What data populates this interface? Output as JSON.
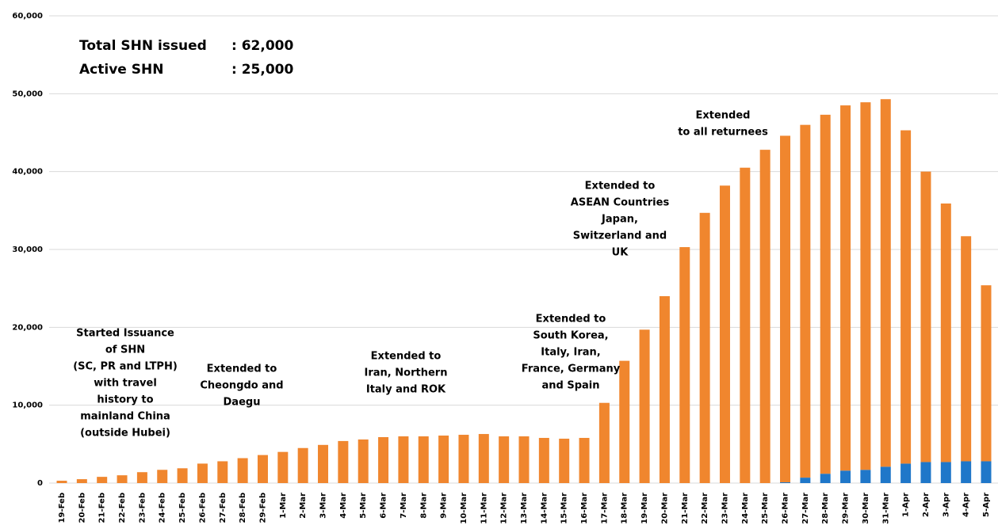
{
  "chart_data": {
    "type": "stacked_bar",
    "summary": [
      {
        "label": "Total SHN issued",
        "value": ": 62,000"
      },
      {
        "label": "Active SHN",
        "value": ": 25,000"
      }
    ],
    "annotations": [
      {
        "lines": [
          "Started Issuance",
          "of SHN",
          "(SC, PR and LTPH)",
          "with travel",
          "history to",
          "mainland China",
          "(outside Hubei)"
        ]
      },
      {
        "lines": [
          "Extended to",
          "Cheongdo and",
          "Daegu"
        ]
      },
      {
        "lines": [
          "Extended to",
          "Iran, Northern",
          "Italy and ROK"
        ]
      },
      {
        "lines": [
          "Extended to",
          "South Korea,",
          "Italy, Iran,",
          "France, Germany",
          "and Spain"
        ]
      },
      {
        "lines": [
          "Extended to",
          "ASEAN Countries",
          "Japan,",
          "Switzerland and",
          "UK"
        ]
      },
      {
        "lines": [
          "Extended",
          "to all returnees"
        ]
      }
    ],
    "categories": [
      "19-Feb",
      "20-Feb",
      "21-Feb",
      "22-Feb",
      "23-Feb",
      "24-Feb",
      "25-Feb",
      "26-Feb",
      "27-Feb",
      "28-Feb",
      "29-Feb",
      "1-Mar",
      "2-Mar",
      "3-Mar",
      "4-Mar",
      "5-Mar",
      "6-Mar",
      "7-Mar",
      "8-Mar",
      "9-Mar",
      "10-Mar",
      "11-Mar",
      "12-Mar",
      "13-Mar",
      "14-Mar",
      "15-Mar",
      "16-Mar",
      "17-Mar",
      "18-Mar",
      "19-Mar",
      "20-Mar",
      "21-Mar",
      "22-Mar",
      "23-Mar",
      "24-Mar",
      "25-Mar",
      "26-Mar",
      "27-Mar",
      "28-Mar",
      "29-Mar",
      "30-Mar",
      "31-Mar",
      "1-Apr",
      "2-Apr",
      "3-Apr",
      "4-Apr",
      "5-Apr"
    ],
    "series": [
      {
        "color": "#1f77c9",
        "values": [
          0,
          0,
          0,
          0,
          0,
          0,
          0,
          0,
          0,
          0,
          0,
          0,
          0,
          0,
          0,
          0,
          0,
          0,
          0,
          0,
          0,
          0,
          0,
          0,
          0,
          0,
          0,
          0,
          0,
          0,
          0,
          0,
          0,
          0,
          0,
          0,
          100,
          700,
          1200,
          1600,
          1700,
          2100,
          2500,
          2700,
          2700,
          2800,
          2800
        ]
      },
      {
        "color": "#f0862e",
        "values": [
          300,
          500,
          800,
          1000,
          1400,
          1700,
          1900,
          2500,
          2800,
          3200,
          3600,
          4000,
          4500,
          4900,
          5400,
          5600,
          5900,
          6000,
          6000,
          6100,
          6200,
          6300,
          6000,
          6000,
          5800,
          5700,
          5800,
          10300,
          15700,
          19700,
          24000,
          30300,
          34700,
          38200,
          40500,
          42800,
          44500,
          45300,
          46100,
          46900,
          47200,
          47200,
          42800,
          37300,
          33200,
          28900,
          22600
        ]
      }
    ],
    "ylim": [
      0,
      60000
    ],
    "yticks": [
      0,
      {
        "value": 10000,
        "label": "10,000"
      },
      {
        "value": 20000,
        "label": "20,000"
      },
      {
        "value": 30000,
        "label": "30,000"
      },
      {
        "value": 40000,
        "label": "40,000"
      },
      {
        "value": 50000,
        "label": "50,000"
      },
      {
        "value": 60000,
        "label": "60,000"
      }
    ],
    "grid": true
  }
}
